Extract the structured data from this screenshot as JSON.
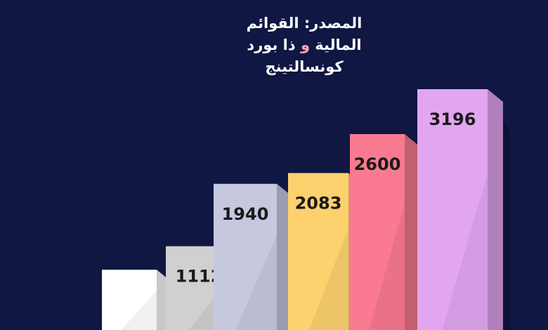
{
  "caption": {
    "line1": "المصدر: القوائم",
    "line2_before": "المالية ",
    "line2_amp": "و",
    "line2_after": " ذا بورد",
    "line3": "كونسالتينج"
  },
  "colors": {
    "background": "#0f1742",
    "ampersand": "#f7a3b8"
  },
  "chart_data": {
    "type": "bar",
    "title": "",
    "xlabel": "",
    "ylabel": "",
    "categories": [
      "",
      "",
      "",
      "",
      "",
      ""
    ],
    "series": [
      {
        "values": [
          800,
          1112,
          1940,
          2083,
          2600,
          3196
        ],
        "labels": [
          "",
          "1112",
          "1940",
          "2083",
          "2600",
          "3196"
        ]
      }
    ],
    "style": "3d-bars",
    "bar_colors": [
      "#ffffff",
      "#d0d0d0",
      "#c6c8e0",
      "#fcd16e",
      "#f97a91",
      "#e2a6f1"
    ],
    "grid": false,
    "legend": "none"
  }
}
